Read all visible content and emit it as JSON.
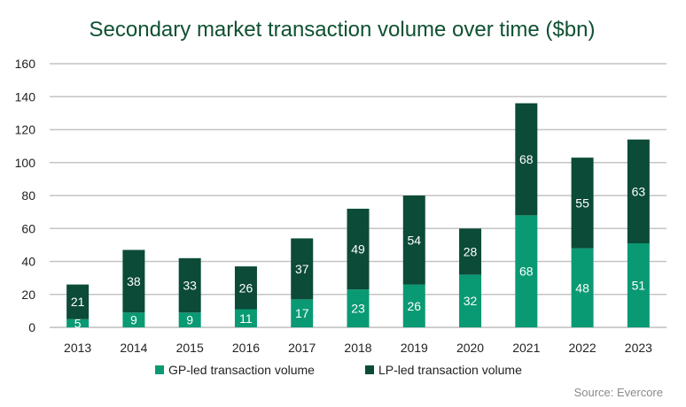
{
  "chart_data": {
    "type": "bar",
    "stacked": true,
    "title": "Secondary market transaction volume over time ($bn)",
    "categories": [
      "2013",
      "2014",
      "2015",
      "2016",
      "2017",
      "2018",
      "2019",
      "2020",
      "2021",
      "2022",
      "2023"
    ],
    "series": [
      {
        "name": "GP-led transaction volume",
        "color": "#0a9a73",
        "values": [
          5,
          9,
          9,
          11,
          17,
          23,
          26,
          32,
          68,
          48,
          51
        ]
      },
      {
        "name": "LP-led transaction volume",
        "color": "#0b4b38",
        "values": [
          21,
          38,
          33,
          26,
          37,
          49,
          54,
          28,
          68,
          55,
          63
        ]
      }
    ],
    "ylim": [
      0,
      160
    ],
    "yticks": [
      0,
      20,
      40,
      60,
      80,
      100,
      120,
      140,
      160
    ],
    "grid": true,
    "legend_position": "bottom",
    "source": "Source: Evercore"
  }
}
